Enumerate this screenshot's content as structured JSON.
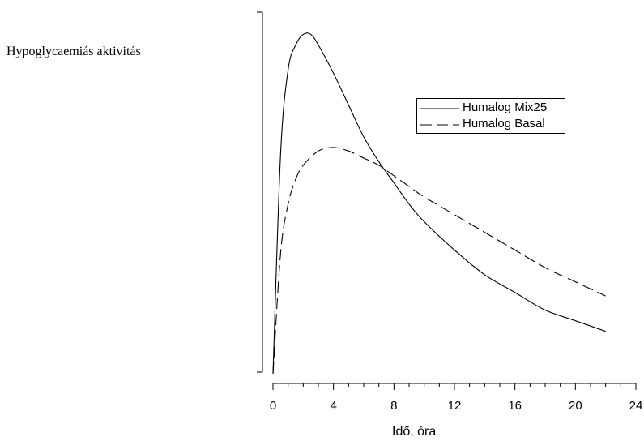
{
  "chart_data": {
    "type": "line",
    "xlabel": "Idő, óra",
    "ylabel": "Hypoglycaemiás aktivitás",
    "xlim": [
      0,
      24
    ],
    "x_ticks": [
      0,
      4,
      8,
      12,
      16,
      20,
      24
    ],
    "x_tick_labels": [
      "0",
      "4",
      "8",
      "12",
      "16",
      "20",
      "24"
    ],
    "ylim": [
      0,
      1
    ],
    "y_ticks_shown": false,
    "grid": false,
    "legend_position": "top-right",
    "series": [
      {
        "name": "Humalog Mix25",
        "style": "solid",
        "color": "#000000",
        "x": [
          0,
          0.5,
          1,
          1.5,
          2,
          2.5,
          3,
          4,
          5,
          6,
          7,
          8,
          9,
          10,
          12,
          14,
          16,
          18,
          20,
          22
        ],
        "y": [
          0.0,
          0.62,
          0.86,
          0.93,
          0.96,
          0.96,
          0.93,
          0.85,
          0.76,
          0.67,
          0.6,
          0.54,
          0.48,
          0.43,
          0.35,
          0.28,
          0.23,
          0.18,
          0.15,
          0.12
        ]
      },
      {
        "name": "Humalog Basal",
        "style": "dashed",
        "color": "#000000",
        "x": [
          0,
          0.5,
          1,
          1.5,
          2,
          3,
          4,
          5,
          6,
          7,
          8,
          9,
          10,
          12,
          14,
          16,
          18,
          20,
          22
        ],
        "y": [
          0.0,
          0.34,
          0.48,
          0.55,
          0.59,
          0.63,
          0.64,
          0.63,
          0.61,
          0.59,
          0.56,
          0.53,
          0.5,
          0.45,
          0.4,
          0.35,
          0.3,
          0.26,
          0.22
        ]
      }
    ]
  }
}
